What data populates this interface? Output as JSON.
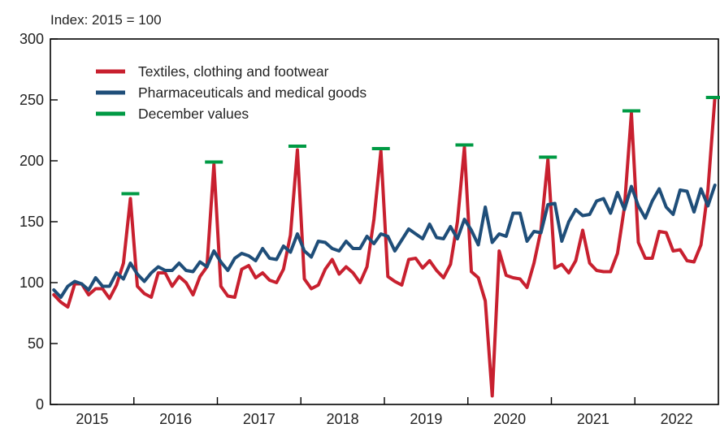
{
  "chart_data": {
    "type": "line",
    "unit_label": "Index: 2015 = 100",
    "ylim": [
      0,
      300
    ],
    "y_ticks": [
      0,
      50,
      100,
      150,
      200,
      250,
      300
    ],
    "x_labels": [
      "2015",
      "2016",
      "2017",
      "2018",
      "2019",
      "2020",
      "2021",
      "2022"
    ],
    "x_range_months": [
      "2015-01",
      "2022-12"
    ],
    "grid": false,
    "legend_placement": "top-left",
    "series": [
      {
        "name": "Textiles, clothing and footwear",
        "color": "#c8202f",
        "values": [
          90,
          84,
          80,
          99,
          99,
          90,
          95,
          95,
          87,
          98,
          116,
          169,
          97,
          91,
          88,
          108,
          108,
          97,
          105,
          100,
          90,
          105,
          113,
          197,
          97,
          89,
          88,
          111,
          114,
          104,
          108,
          102,
          100,
          111,
          139,
          209,
          103,
          95,
          98,
          111,
          119,
          107,
          113,
          108,
          100,
          113,
          152,
          208,
          105,
          101,
          98,
          119,
          120,
          112,
          118,
          110,
          104,
          115,
          150,
          211,
          109,
          104,
          85,
          7,
          126,
          106,
          104,
          103,
          96,
          116,
          143,
          201,
          112,
          115,
          108,
          118,
          143,
          116,
          110,
          109,
          109,
          124,
          162,
          239,
          133,
          120,
          120,
          142,
          141,
          126,
          127,
          118,
          117,
          131,
          176,
          252
        ]
      },
      {
        "name": "Pharmaceuticals and medical goods",
        "color": "#1f4e79",
        "values": [
          94,
          88,
          97,
          101,
          99,
          94,
          104,
          97,
          97,
          108,
          103,
          116,
          107,
          101,
          108,
          113,
          110,
          110,
          116,
          110,
          109,
          117,
          113,
          126,
          117,
          110,
          120,
          124,
          122,
          118,
          128,
          120,
          119,
          130,
          125,
          140,
          126,
          121,
          134,
          133,
          128,
          126,
          134,
          128,
          128,
          138,
          132,
          140,
          138,
          126,
          135,
          144,
          140,
          136,
          148,
          137,
          136,
          146,
          136,
          152,
          143,
          131,
          162,
          133,
          140,
          138,
          157,
          157,
          134,
          142,
          141,
          164,
          165,
          134,
          150,
          160,
          155,
          156,
          167,
          169,
          157,
          174,
          160,
          179,
          163,
          153,
          167,
          177,
          162,
          156,
          176,
          175,
          158,
          177,
          163,
          180
        ]
      }
    ],
    "markers": {
      "name": "December values",
      "color": "#009a44",
      "values": [
        173,
        199,
        212,
        210,
        213,
        203,
        241,
        252
      ]
    }
  }
}
